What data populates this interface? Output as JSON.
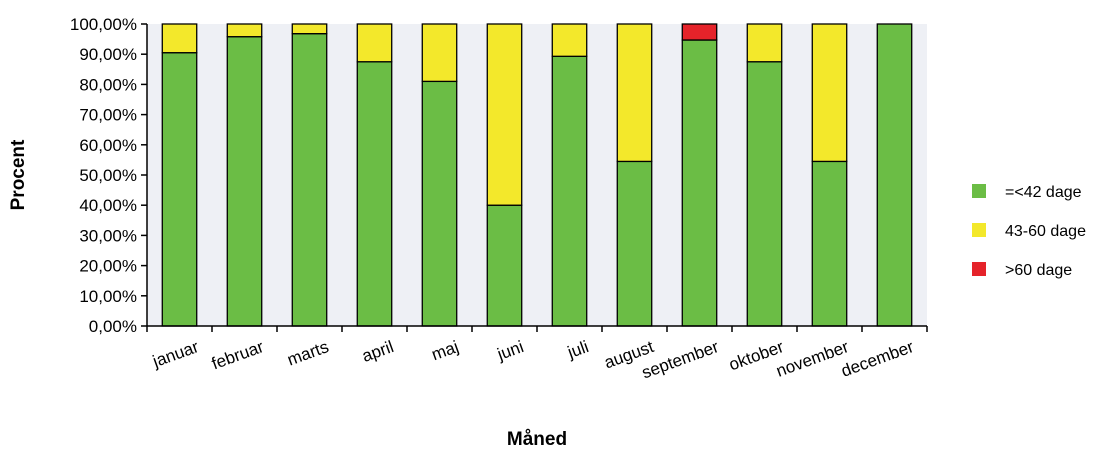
{
  "chart_data": {
    "type": "bar",
    "stacked": true,
    "categories": [
      "januar",
      "februar",
      "marts",
      "april",
      "maj",
      "juni",
      "juli",
      "august",
      "september",
      "oktober",
      "november",
      "december"
    ],
    "series": [
      {
        "name": "=<42 dage",
        "color": "#6bbd45",
        "values": [
          90.5,
          95.8,
          96.8,
          87.5,
          81.0,
          40.0,
          89.3,
          54.5,
          94.7,
          87.5,
          54.5,
          100.0
        ]
      },
      {
        "name": "43-60 dage",
        "color": "#f3e82b",
        "values": [
          9.5,
          4.2,
          3.2,
          12.5,
          19.0,
          60.0,
          10.7,
          45.5,
          0.0,
          12.5,
          45.5,
          0.0
        ]
      },
      {
        "name": ">60 dage",
        "color": "#e5232a",
        "values": [
          0,
          0,
          0,
          0,
          0,
          0,
          0,
          0,
          5.3,
          0,
          0,
          0
        ]
      }
    ],
    "yticks": [
      "0,00%",
      "10,00%",
      "20,00%",
      "30,00%",
      "40,00%",
      "50,00%",
      "60,00%",
      "70,00%",
      "80,00%",
      "90,00%",
      "100,00%"
    ],
    "ylim": [
      0,
      100
    ],
    "xlabel": "Måned",
    "ylabel": "Procent",
    "legend_position": "right",
    "plot_background": "#eef0f5",
    "grid": false
  }
}
